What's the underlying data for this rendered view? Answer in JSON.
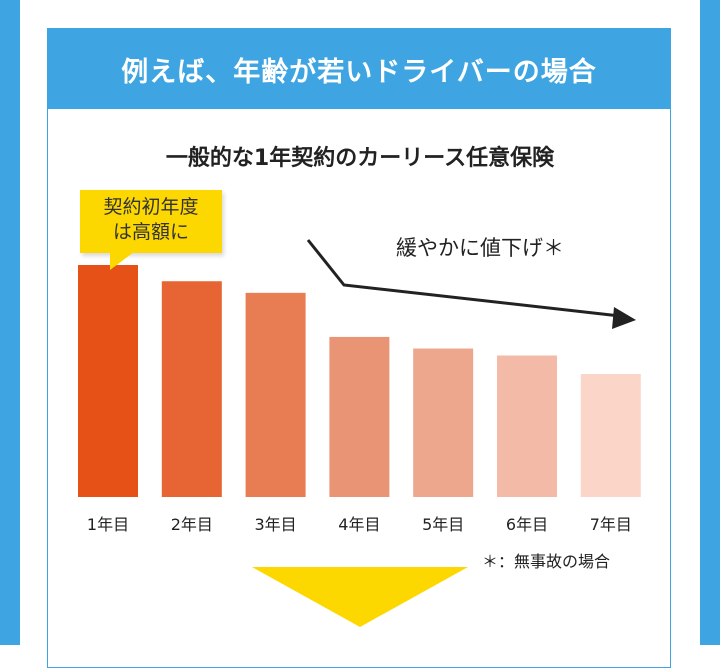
{
  "header": {
    "title": "例えば、年齢が若いドライバーの場合"
  },
  "chart_data": {
    "type": "bar",
    "title": "一般的な1年契約のカーリース任意保険",
    "categories": [
      "1年目",
      "2年目",
      "3年目",
      "4年目",
      "5年目",
      "6年目",
      "7年目"
    ],
    "values": [
      100,
      93,
      88,
      69,
      64,
      61,
      53
    ],
    "value_note": "relative heights, no axis shown",
    "colors": [
      "#e65117",
      "#e76434",
      "#e87c52",
      "#e99474",
      "#eda78d",
      "#f3bba7",
      "#fbd5c8"
    ],
    "grid": false,
    "annotations": {
      "callout": [
        "契約初年度",
        "は高額に"
      ],
      "trend": "緩やかに値下げ＊",
      "footnote": "＊：無事故の場合"
    }
  },
  "colors": {
    "accent": "#3ea5e2",
    "highlight": "#fcd800"
  }
}
